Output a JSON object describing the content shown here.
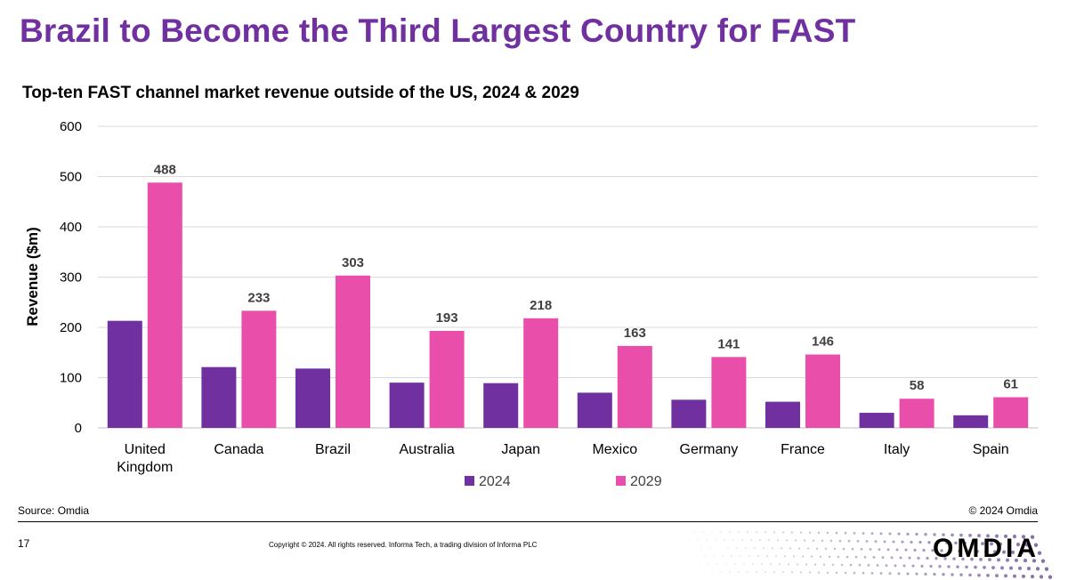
{
  "slide": {
    "title": "Brazil to Become the Third Largest Country for FAST",
    "source": "Source: Omdia",
    "copyright_short": "© 2024 Omdia",
    "page_number": "17",
    "legal": "Copyright © 2024. All rights reserved. Informa Tech, a trading division of Informa PLC",
    "logo_text": "OMDIA"
  },
  "colors": {
    "accent": "#7030a0",
    "series_2024": "#7030a0",
    "series_2029": "#e94faa"
  },
  "chart_data": {
    "type": "bar",
    "title": "Top-ten FAST channel market revenue outside of the US, 2024 & 2029",
    "xlabel": "",
    "ylabel": "Revenue ($m)",
    "ylim": [
      0,
      600
    ],
    "yticks": [
      0,
      100,
      200,
      300,
      400,
      500,
      600
    ],
    "grid": true,
    "legend": "bottom",
    "categories": [
      "United Kingdom",
      "Canada",
      "Brazil",
      "Australia",
      "Japan",
      "Mexico",
      "Germany",
      "France",
      "Italy",
      "Spain"
    ],
    "series": [
      {
        "name": "2024",
        "values": [
          213,
          121,
          118,
          90,
          89,
          70,
          56,
          52,
          30,
          25
        ],
        "labels": false
      },
      {
        "name": "2029",
        "values": [
          488,
          233,
          303,
          193,
          218,
          163,
          141,
          146,
          58,
          61
        ],
        "labels": true
      }
    ]
  }
}
